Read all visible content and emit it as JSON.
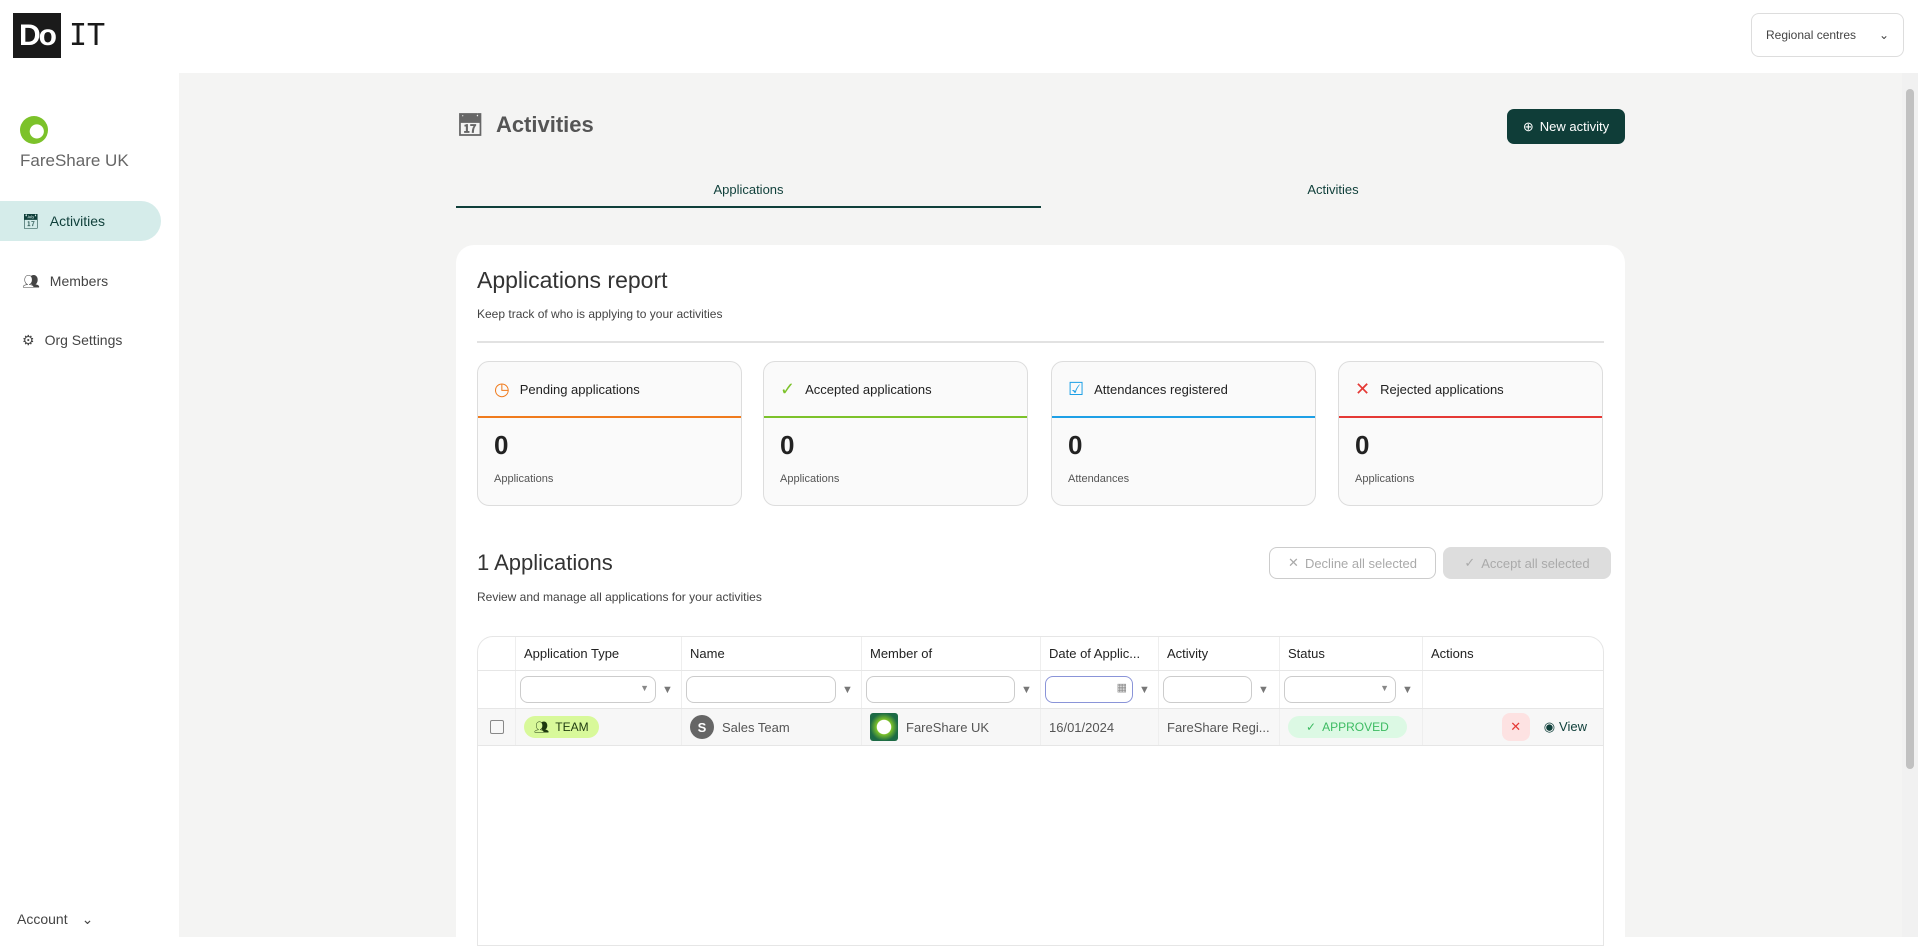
{
  "brand": {
    "logo_text": "Do",
    "logo_suffix": "IT"
  },
  "header": {
    "region_select": "Regional centres"
  },
  "sidebar": {
    "org_name": "FareShare UK",
    "items": [
      {
        "label": "Activities",
        "icon": "calendar-icon",
        "active": true
      },
      {
        "label": "Members",
        "icon": "users-icon"
      },
      {
        "label": "Org Settings",
        "icon": "gear-icon"
      }
    ],
    "account": "Account"
  },
  "page": {
    "title": "Activities",
    "new_button": "New activity",
    "tabs": [
      {
        "label": "Applications",
        "active": true
      },
      {
        "label": "Activities"
      }
    ]
  },
  "report": {
    "title": "Applications report",
    "subtitle": "Keep track of who is applying to your activities",
    "stats": [
      {
        "label": "Pending applications",
        "value": "0",
        "unit": "Applications",
        "color": "#f07b1d",
        "icon": "clock-icon"
      },
      {
        "label": "Accepted applications",
        "value": "0",
        "unit": "Applications",
        "color": "#7cc22a",
        "icon": "check-icon"
      },
      {
        "label": "Attendances registered",
        "value": "0",
        "unit": "Attendances",
        "color": "#1ea0e6",
        "icon": "checkbox-icon"
      },
      {
        "label": "Rejected applications",
        "value": "0",
        "unit": "Applications",
        "color": "#e53935",
        "icon": "x-icon"
      }
    ]
  },
  "applications": {
    "title": "1 Applications",
    "subtitle": "Review and manage all applications for your activities",
    "decline_all": "Decline all selected",
    "accept_all": "Accept all selected",
    "columns": [
      "Application Type",
      "Name",
      "Member of",
      "Date of Applic...",
      "Activity",
      "Status",
      "Actions"
    ],
    "rows": [
      {
        "type": "TEAM",
        "avatar": "S",
        "name": "Sales Team",
        "member_of": "FareShare UK",
        "date": "16/01/2024",
        "activity": "FareShare Regi...",
        "status": "APPROVED",
        "view": "View"
      }
    ]
  },
  "colors": {
    "primary": "#0f3d38",
    "sidebar_active": "#d5ecea",
    "approved_bg": "#dcf9e4",
    "team_bg": "#d8f99a"
  }
}
